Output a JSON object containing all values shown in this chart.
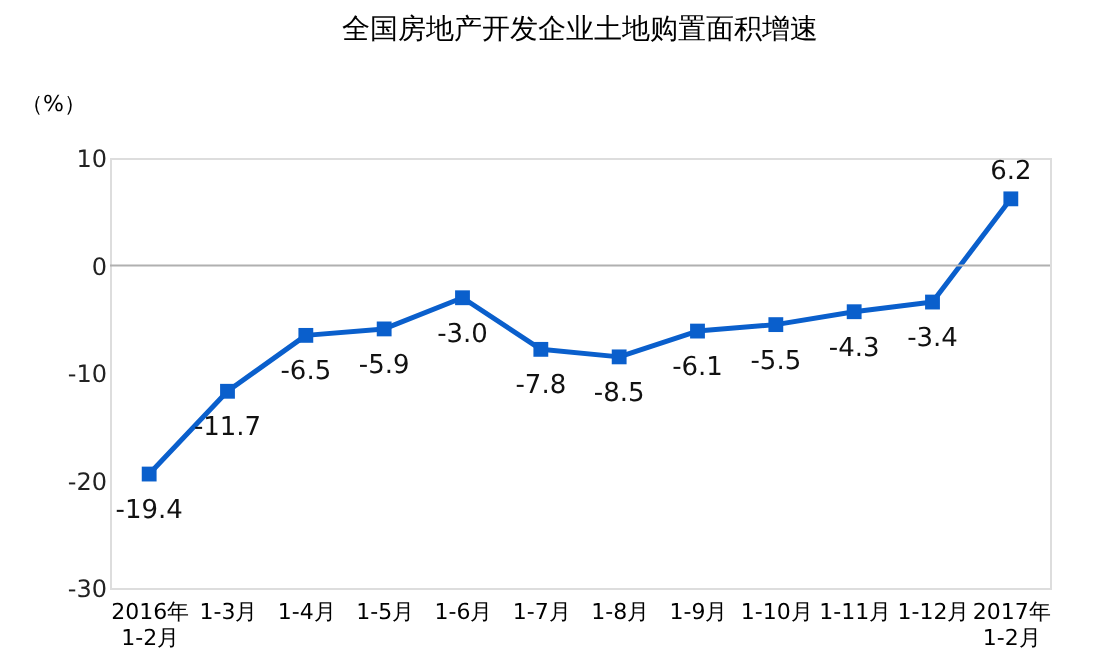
{
  "chart_data": {
    "type": "line",
    "title": "全国房地产开发企业土地购置面积增速",
    "ylabel": "（%）",
    "categories": [
      "2016年\n1-2月",
      "1-3月",
      "1-4月",
      "1-5月",
      "1-6月",
      "1-7月",
      "1-8月",
      "1-9月",
      "1-10月",
      "1-11月",
      "1-12月",
      "2017年\n1-2月"
    ],
    "series": [
      {
        "color": "#0a5fcc",
        "values": [
          -19.4,
          -11.7,
          -6.5,
          -5.9,
          -3.0,
          -7.8,
          -8.5,
          -6.1,
          -5.5,
          -4.3,
          -3.4,
          6.2
        ]
      }
    ],
    "ylim": [
      -30,
      10
    ],
    "yticks": [
      -30,
      -20,
      -10,
      0,
      10
    ],
    "ref_lines": [
      {
        "axis": "y",
        "value": 0,
        "color": "#b0b0b0"
      }
    ],
    "value_labels": [
      "-19.4",
      "-11.7",
      "-6.5",
      "-5.9",
      "-3.0",
      "-7.8",
      "-8.5",
      "-6.1",
      "-5.5",
      "-4.3",
      "-3.4",
      "6.2"
    ],
    "marker": "square",
    "grid": false
  }
}
